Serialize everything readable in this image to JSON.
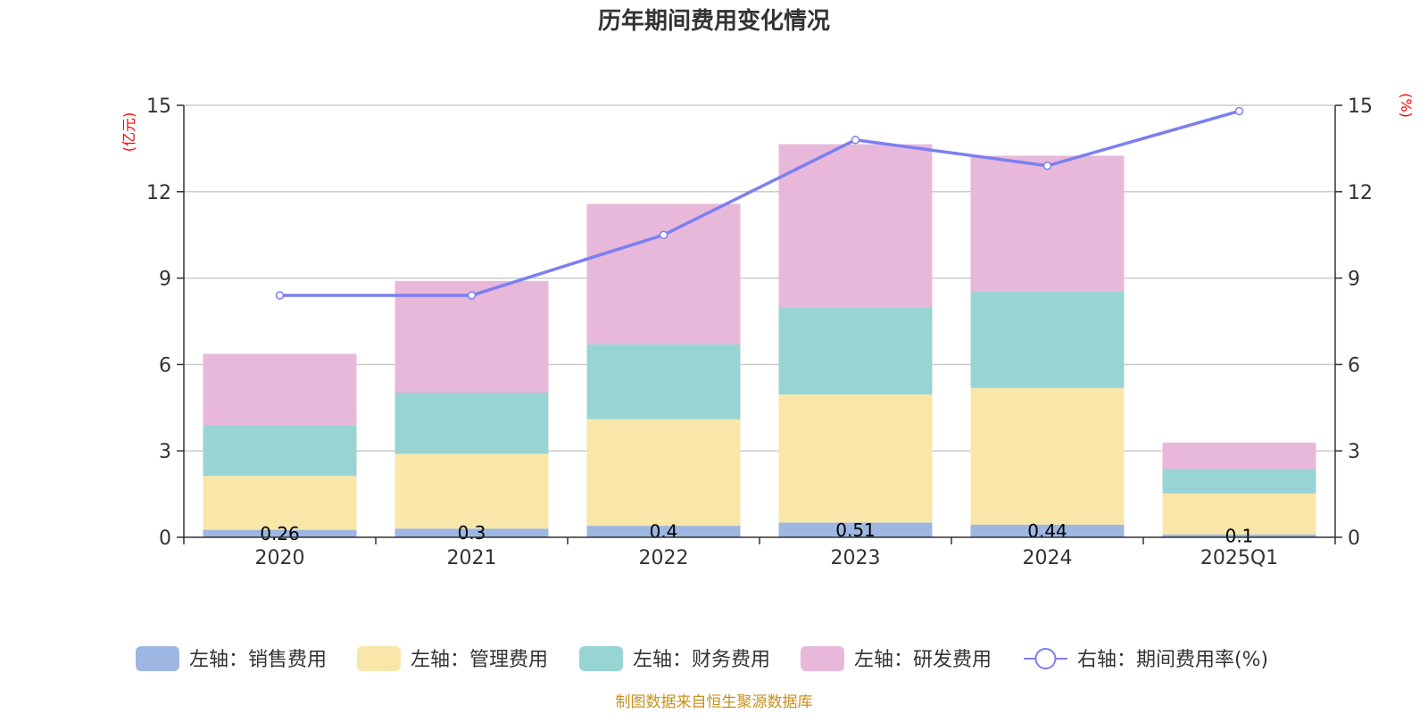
{
  "chart_data": {
    "type": "bar",
    "title": "历年期间费用变化情况",
    "categories": [
      "2020",
      "2021",
      "2022",
      "2023",
      "2024",
      "2025Q1"
    ],
    "left_axis": {
      "unit": "(亿元)",
      "ylim": [
        0,
        15
      ],
      "ticks": [
        0,
        3,
        6,
        9,
        12,
        15
      ]
    },
    "right_axis": {
      "unit": "(%)",
      "ylim": [
        0,
        15
      ],
      "ticks": [
        0,
        3,
        6,
        9,
        12,
        15
      ]
    },
    "series": [
      {
        "name": "左轴：销售费用",
        "type": "bar",
        "color": "#9db6e2",
        "values": [
          0.26,
          0.3,
          0.4,
          0.51,
          0.44,
          0.1
        ],
        "labels": [
          "0.26",
          "0.3",
          "0.4",
          "0.51",
          "0.44",
          "0.1"
        ]
      },
      {
        "name": "左轴：管理费用",
        "type": "bar",
        "color": "#f8e7a9",
        "values": [
          1.87,
          2.6,
          3.7,
          4.45,
          4.75,
          1.42
        ]
      },
      {
        "name": "左轴：财务费用",
        "type": "bar",
        "color": "#98d4d4",
        "values": [
          1.77,
          2.12,
          2.6,
          3.02,
          3.33,
          0.85
        ]
      },
      {
        "name": "左轴：研发费用",
        "type": "bar",
        "color": "#e8b8da",
        "values": [
          2.47,
          3.88,
          4.88,
          5.67,
          4.73,
          0.92
        ]
      },
      {
        "name": "右轴：期间费用率(%)",
        "type": "line",
        "color": "#7b7ff0",
        "values": [
          8.4,
          8.4,
          10.5,
          13.8,
          12.9,
          14.8
        ]
      }
    ],
    "legend_position": "bottom",
    "grid": true
  },
  "footer": {
    "source": "制图数据来自恒生聚源数据库"
  }
}
